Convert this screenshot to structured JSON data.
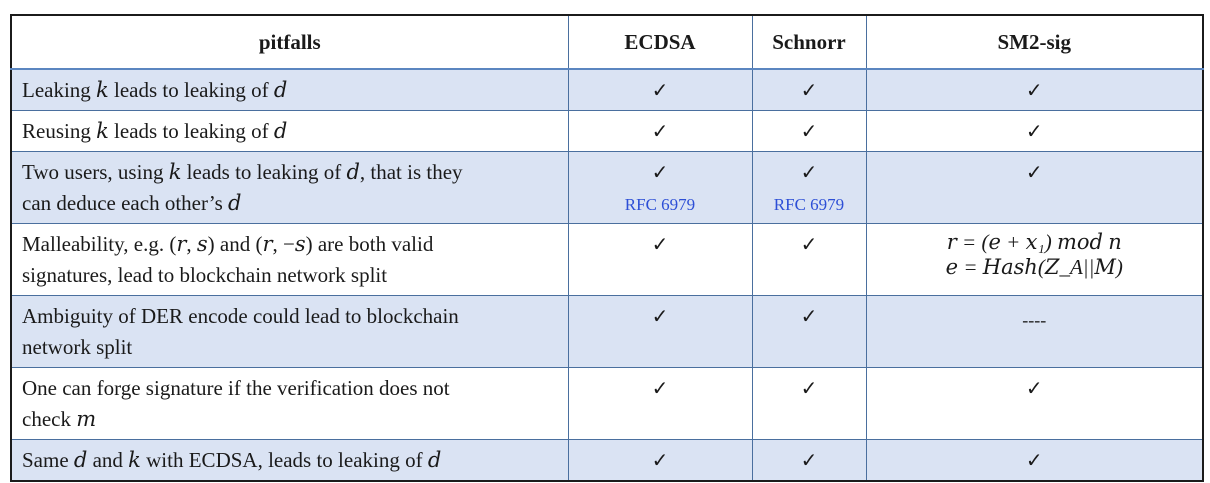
{
  "table": {
    "headers": [
      "pitfalls",
      "ECDSA",
      "Schnorr",
      "SM2-sig"
    ],
    "check": "✓",
    "rows": [
      {
        "pitfall": "Leaking 𝑘 leads to leaking of 𝑑",
        "ecdsa": "✓",
        "schnorr": "✓",
        "sm2": "✓"
      },
      {
        "pitfall": "Reusing 𝑘 leads to leaking of 𝑑",
        "ecdsa": "✓",
        "schnorr": "✓",
        "sm2": "✓"
      },
      {
        "pitfall_line1": "Two users, using 𝑘 leads to leaking of 𝑑, that is they",
        "pitfall_line2": "can deduce each other’s 𝑑",
        "ecdsa": "✓",
        "ecdsa_note": "RFC 6979",
        "schnorr": "✓",
        "schnorr_note": "RFC 6979",
        "sm2": "✓"
      },
      {
        "pitfall_line1": "Malleability, e.g. (𝑟, 𝑠) and (𝑟, −𝑠) are both valid",
        "pitfall_line2": "signatures, lead to blockchain network split",
        "ecdsa": "✓",
        "schnorr": "✓",
        "sm2_line1": "𝑟 = (𝑒 + 𝑥₁) 𝑚𝑜𝑑 𝑛",
        "sm2_line2": "𝑒 = 𝐻𝑎𝑠ℎ(𝑍_A||𝑀)"
      },
      {
        "pitfall_line1": "Ambiguity of DER encode could lead to blockchain",
        "pitfall_line2": "network split",
        "ecdsa": "✓",
        "schnorr": "✓",
        "sm2": "----"
      },
      {
        "pitfall_line1": "One can forge signature if the verification does not",
        "pitfall_line2": "check 𝑚",
        "ecdsa": "✓",
        "schnorr": "✓",
        "sm2": "✓"
      },
      {
        "pitfall": "Same 𝑑 and 𝑘 with ECDSA, leads to leaking of 𝑑",
        "ecdsa": "✓",
        "schnorr": "✓",
        "sm2": "✓"
      }
    ]
  }
}
